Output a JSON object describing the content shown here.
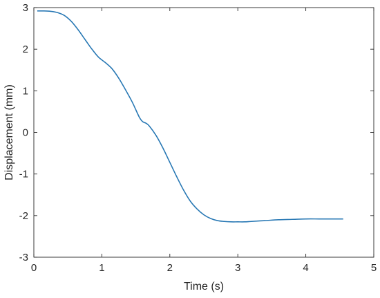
{
  "chart_data": {
    "type": "line",
    "xlabel": "Time (s)",
    "ylabel": "Displacement (mm)",
    "xlim": [
      0,
      5
    ],
    "ylim": [
      -3,
      3
    ],
    "xticks": [
      0,
      1,
      2,
      3,
      4,
      5
    ],
    "yticks": [
      -3,
      -2,
      -1,
      0,
      1,
      2,
      3
    ],
    "grid": false,
    "box": true,
    "series": [
      {
        "color": "#2878b4",
        "x": [
          0.05,
          0.15,
          0.25,
          0.35,
          0.45,
          0.55,
          0.65,
          0.75,
          0.85,
          0.95,
          1.05,
          1.15,
          1.25,
          1.35,
          1.45,
          1.55,
          1.6,
          1.65,
          1.7,
          1.8,
          1.9,
          2.0,
          2.1,
          2.2,
          2.3,
          2.4,
          2.5,
          2.6,
          2.7,
          2.8,
          2.9,
          3.0,
          3.1,
          3.2,
          3.4,
          3.6,
          3.8,
          4.0,
          4.2,
          4.4,
          4.55
        ],
        "y": [
          2.92,
          2.92,
          2.91,
          2.88,
          2.81,
          2.67,
          2.47,
          2.24,
          2.01,
          1.81,
          1.68,
          1.53,
          1.3,
          1.02,
          0.72,
          0.37,
          0.26,
          0.22,
          0.15,
          -0.08,
          -0.38,
          -0.72,
          -1.06,
          -1.38,
          -1.65,
          -1.84,
          -1.98,
          -2.07,
          -2.12,
          -2.14,
          -2.15,
          -2.15,
          -2.15,
          -2.14,
          -2.12,
          -2.1,
          -2.09,
          -2.08,
          -2.08,
          -2.08,
          -2.08
        ]
      }
    ]
  }
}
